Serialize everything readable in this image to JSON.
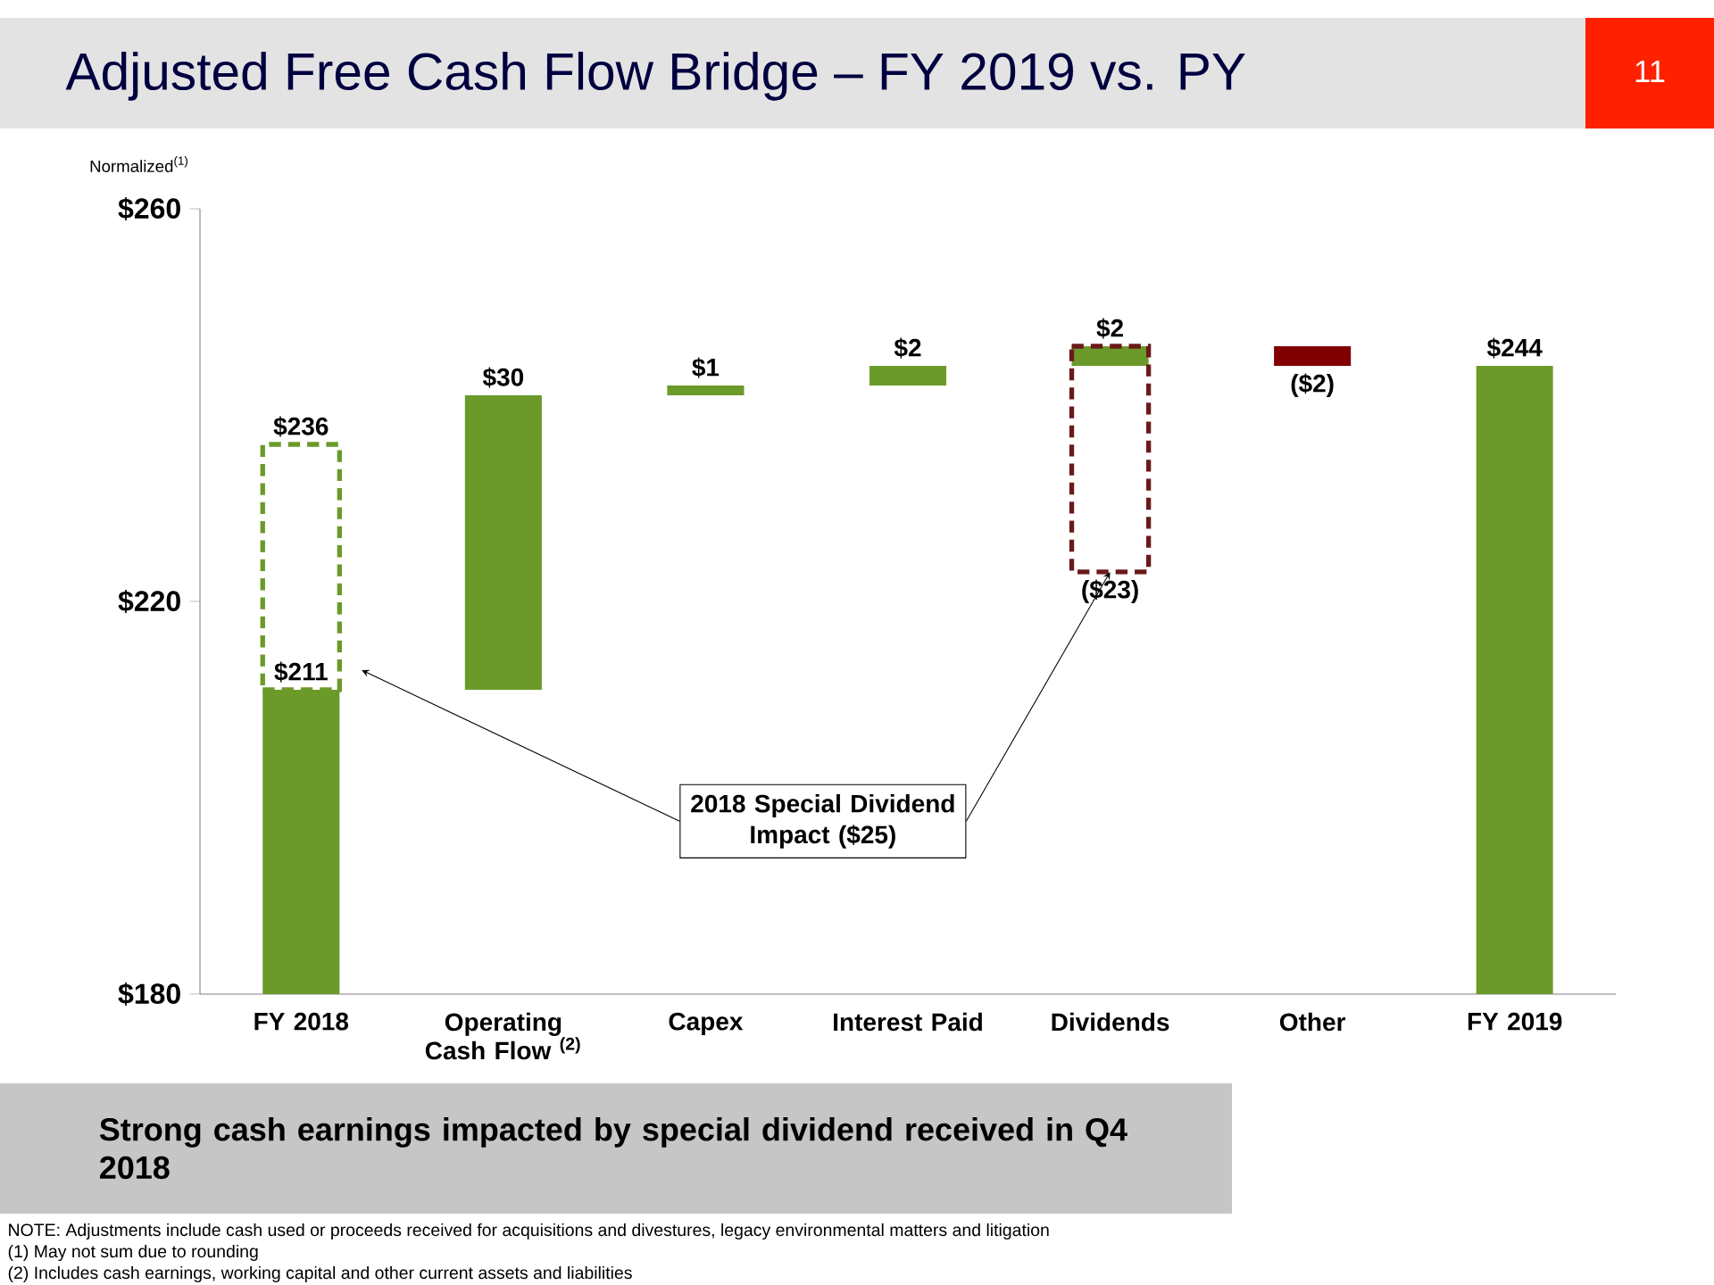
{
  "chart_data": {
    "type": "bar",
    "title": "Adjusted Free Cash Flow Bridge – FY 2019 vs. PY",
    "subtitle": "Normalized$^{(1)}$",
    "categories": [
      "FY 2018",
      "Operating Cash Flow $^{(2)}$",
      "Capex",
      "Interest Paid",
      "Dividends",
      "Other",
      "FY 2019"
    ],
    "series": [
      {
        "values": [
          211,
          30,
          1,
          2,
          2,
          -2,
          244
        ],
        "base": [
          null,
          211,
          241,
          242,
          244,
          246,
          null
        ],
        "colors": [
          "#6b9a2a",
          "#6b9a2a",
          "#6b9a2a",
          "#6b9a2a",
          "#6b9a2a",
          "#800000",
          "#6b9a2a"
        ],
        "value_labels": [
          "$211",
          "$30",
          "$1",
          "$2",
          "$2",
          "($2)",
          "$244"
        ]
      },
      {
        "values": [
          25,
          null,
          null,
          null,
          -23,
          null,
          null
        ],
        "base": [
          211,
          null,
          null,
          null,
          246,
          null,
          null
        ],
        "colors": [
          "#6b9a2a",
          null,
          null,
          null,
          "#6b1a1a",
          null,
          null
        ],
        "line_style": "dashed",
        "value_labels": [
          "$236",
          null,
          null,
          null,
          "($23)",
          null,
          null
        ]
      }
    ],
    "ylim": [
      180,
      260
    ],
    "yticks": [
      {
        "value": 180,
        "label": "$180"
      },
      {
        "value": 220,
        "label": "$220"
      },
      {
        "value": 260,
        "label": "$260"
      }
    ],
    "annotations": [
      "11",
      {
        "text": "2018 Special Dividend Impact ($25)",
        "x": "Dividends",
        "y": 223
      },
      "Strong cash earnings impacted by special dividend received in Q4 2018",
      "NOTE:  Adjustments include cash used or proceeds received for acquisitions and divestures, legacy environmental matters and litigation",
      "(1)    May not sum due to rounding",
      "(2)    Includes cash earnings, working capital and other current assets and liabilities"
    ]
  }
}
